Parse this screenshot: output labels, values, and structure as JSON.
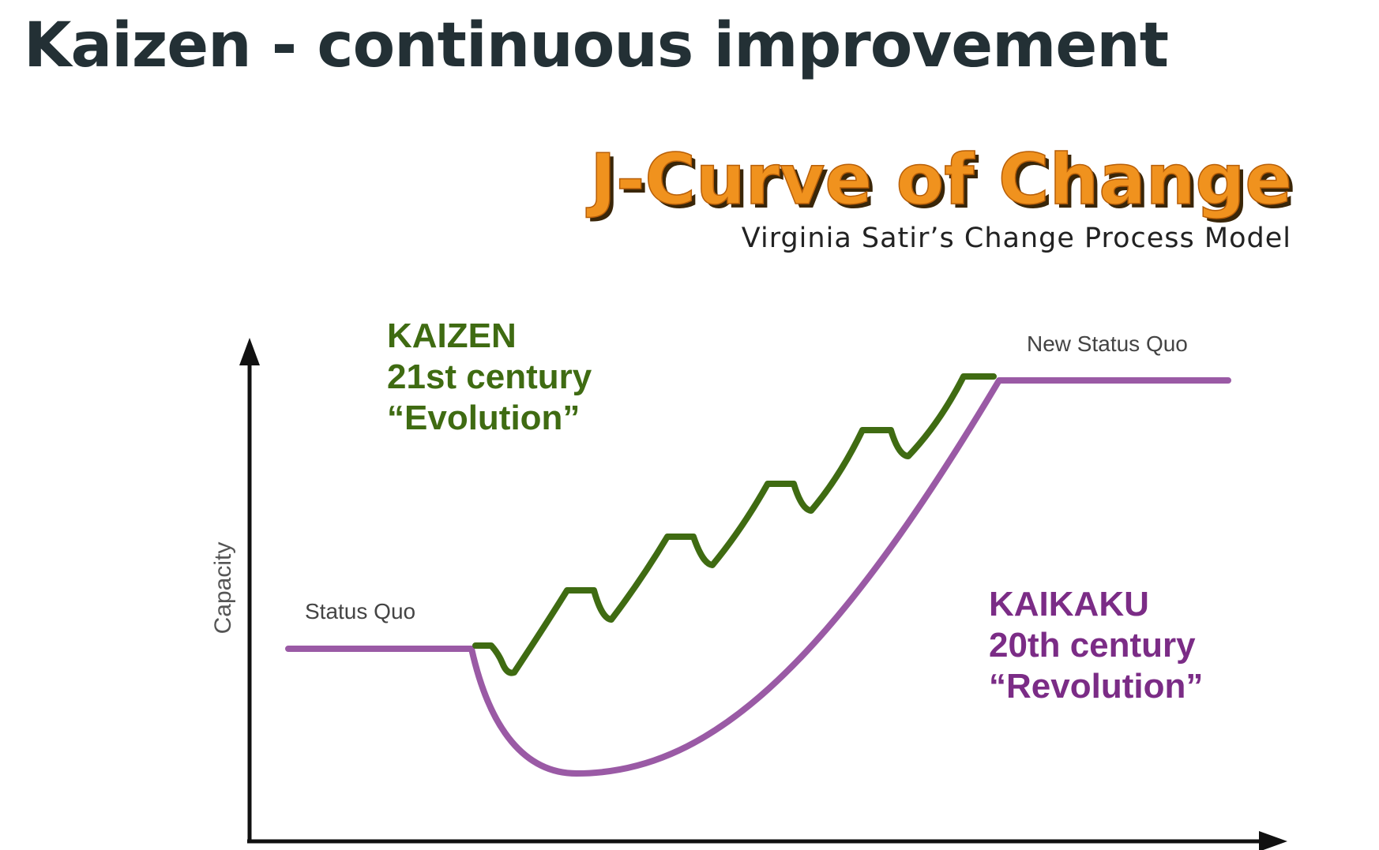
{
  "page": {
    "title": "Kaizen - continuous improvement"
  },
  "figure": {
    "title": "J-Curve of Change",
    "subtitle": "Virginia Satir’s Change Process Model",
    "y_axis_label": "Capacity",
    "status_quo_label": "Status Quo",
    "new_status_quo_label": "New Status Quo",
    "kaizen": {
      "line1": "KAIZEN",
      "line2": "21st century",
      "line3": "“Evolution”",
      "color": "#3f6b12"
    },
    "kaikaku": {
      "line1": "KAIKAKU",
      "line2": "20th century",
      "line3": "“Revolution”",
      "color": "#7b2c86"
    },
    "colors": {
      "title_fill": "#f0921e",
      "title_shadow": "#3a2608",
      "axis": "#111111",
      "kaikaku_line": "#9a5aa5",
      "kaizen_line": "#3f6b12"
    }
  }
}
